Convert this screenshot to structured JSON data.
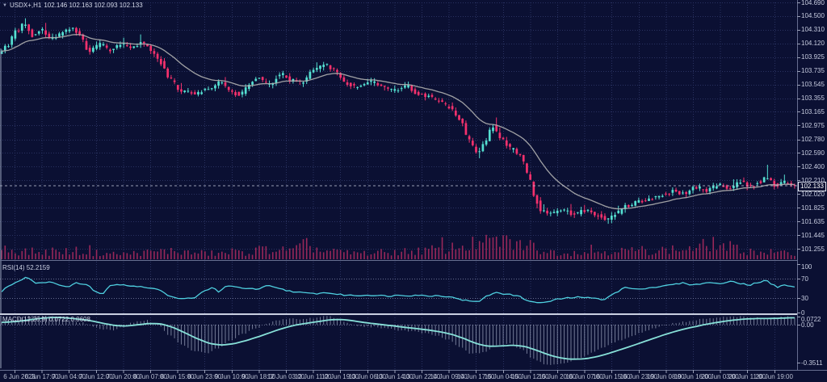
{
  "window": {
    "title_symbol": "USDX+,H1",
    "title_ohlc": "102.146 102.163 102.093 102.133"
  },
  "icons": {
    "dropdown": "▼"
  },
  "panels": {
    "rsi": {
      "label": "RSI(14) 52.2159"
    },
    "macd": {
      "label": "MACD(12,26,9) 0.0722 0.0608"
    }
  },
  "axes": {
    "price": {
      "labels": [
        "104.690",
        "104.500",
        "104.310",
        "104.120",
        "103.925",
        "103.735",
        "103.545",
        "103.355",
        "103.165",
        "102.975",
        "102.780",
        "102.590",
        "102.400",
        "102.210",
        "102.020",
        "101.825",
        "101.635",
        "101.445",
        "101.255"
      ],
      "current": "102.133"
    },
    "rsi": {
      "labels": [
        "100",
        "70",
        "30",
        "0"
      ]
    },
    "macd": {
      "labels": [
        "0.0722",
        "0.00",
        "-0.3511"
      ]
    },
    "time": {
      "labels": [
        "6 Jun 2023",
        "6 Jun 17:00",
        "7 Jun 04:00",
        "7 Jun 12:00",
        "7 Jun 20:00",
        "8 Jun 07:00",
        "8 Jun 15:00",
        "8 Jun 23:00",
        "9 Jun 10:00",
        "9 Jun 18:00",
        "12 Jun 03:00",
        "12 Jun 11:00",
        "12 Jun 19:00",
        "13 Jun 06:00",
        "13 Jun 14:00",
        "13 Jun 22:00",
        "14 Jun 09:00",
        "14 Jun 17:00",
        "15 Jun 04:00",
        "15 Jun 12:00",
        "15 Jun 20:00",
        "16 Jun 07:00",
        "16 Jun 15:00",
        "16 Jun 23:00",
        "19 Jun 08:00",
        "19 Jun 16:00",
        "20 Jun 03:00",
        "20 Jun 11:00",
        "20 Jun 19:00"
      ]
    }
  },
  "colors": {
    "background": "#0b1033",
    "grid": "#2a3261",
    "candle_up": "#55e0d2",
    "candle_down": "#f5316d",
    "ma_line": "#aeaeae",
    "volume": "#a0295c",
    "rsi_line": "#4fd0e0",
    "macd_signal": "#87e0d8",
    "macd_histogram": "#b9c2d9",
    "axis_text": "#c7cce0",
    "divider": "#676e90",
    "divider_bright": "#c9cfe0",
    "price_line": "#c6cbde"
  },
  "chart_data": {
    "type": "candlestick",
    "symbol": "USDX+",
    "timeframe": "H1",
    "title": "USDX+,H1 102.146 102.163 102.093 102.133",
    "legend_position": "none",
    "grid": "dotted",
    "ylim": [
      101.255,
      104.69
    ],
    "num_bars": 235,
    "ohlc_current": {
      "open": 102.146,
      "high": 102.163,
      "low": 102.093,
      "close": 102.133
    },
    "indicators": [
      "MA(20) close",
      "RSI(14)=52.2159",
      "MACD(12,26,9)=0.0722/0.0608"
    ],
    "rsi_levels": [
      70,
      30
    ],
    "macd_scale_marks": [
      0.0722,
      0.0,
      -0.3511
    ],
    "price_path": [
      [
        0,
        103.96
      ],
      [
        10,
        104.08
      ],
      [
        22,
        104.28
      ],
      [
        32,
        104.4
      ],
      [
        42,
        104.22
      ],
      [
        55,
        104.3
      ],
      [
        65,
        104.18
      ],
      [
        78,
        104.26
      ],
      [
        92,
        104.33
      ],
      [
        102,
        104.22
      ],
      [
        112,
        103.99
      ],
      [
        125,
        104.11
      ],
      [
        138,
        104.03
      ],
      [
        152,
        104.12
      ],
      [
        165,
        104.07
      ],
      [
        178,
        104.12
      ],
      [
        190,
        104.02
      ],
      [
        200,
        103.86
      ],
      [
        212,
        103.62
      ],
      [
        228,
        103.44
      ],
      [
        245,
        103.42
      ],
      [
        262,
        103.5
      ],
      [
        275,
        103.57
      ],
      [
        288,
        103.46
      ],
      [
        298,
        103.39
      ],
      [
        312,
        103.56
      ],
      [
        322,
        103.63
      ],
      [
        336,
        103.54
      ],
      [
        350,
        103.7
      ],
      [
        362,
        103.6
      ],
      [
        376,
        103.57
      ],
      [
        390,
        103.73
      ],
      [
        404,
        103.83
      ],
      [
        416,
        103.74
      ],
      [
        430,
        103.55
      ],
      [
        446,
        103.5
      ],
      [
        460,
        103.59
      ],
      [
        475,
        103.52
      ],
      [
        490,
        103.47
      ],
      [
        505,
        103.53
      ],
      [
        518,
        103.42
      ],
      [
        532,
        103.38
      ],
      [
        546,
        103.3
      ],
      [
        560,
        103.22
      ],
      [
        572,
        103.06
      ],
      [
        582,
        102.78
      ],
      [
        592,
        102.59
      ],
      [
        602,
        102.72
      ],
      [
        612,
        102.97
      ],
      [
        622,
        102.8
      ],
      [
        634,
        102.66
      ],
      [
        646,
        102.56
      ],
      [
        656,
        102.3
      ],
      [
        664,
        101.96
      ],
      [
        672,
        101.8
      ],
      [
        684,
        101.74
      ],
      [
        698,
        101.79
      ],
      [
        712,
        101.74
      ],
      [
        726,
        101.79
      ],
      [
        740,
        101.72
      ],
      [
        754,
        101.66
      ],
      [
        766,
        101.76
      ],
      [
        780,
        101.86
      ],
      [
        794,
        101.91
      ],
      [
        808,
        101.96
      ],
      [
        822,
        102.01
      ],
      [
        836,
        102.06
      ],
      [
        850,
        102.02
      ],
      [
        864,
        102.11
      ],
      [
        878,
        102.07
      ],
      [
        892,
        102.15
      ],
      [
        906,
        102.09
      ],
      [
        918,
        102.2
      ],
      [
        930,
        102.12
      ],
      [
        942,
        102.18
      ],
      [
        952,
        102.26
      ],
      [
        962,
        102.14
      ],
      [
        974,
        102.19
      ],
      [
        985,
        102.133
      ]
    ],
    "wick_spikes": [
      {
        "x": 32,
        "up": 0.06
      },
      {
        "x": 592,
        "down": 0.08
      },
      {
        "x": 666,
        "down": 0.05
      },
      {
        "x": 755,
        "down": 0.06
      },
      {
        "x": 950,
        "up": 0.17
      }
    ],
    "volume_envelope": [
      [
        0,
        20
      ],
      [
        30,
        15
      ],
      [
        60,
        13
      ],
      [
        90,
        16
      ],
      [
        120,
        12
      ],
      [
        150,
        10
      ],
      [
        180,
        13
      ],
      [
        210,
        16
      ],
      [
        240,
        12
      ],
      [
        270,
        11
      ],
      [
        300,
        13
      ],
      [
        330,
        19
      ],
      [
        360,
        16
      ],
      [
        380,
        27
      ],
      [
        400,
        15
      ],
      [
        430,
        12
      ],
      [
        460,
        12
      ],
      [
        490,
        14
      ],
      [
        520,
        16
      ],
      [
        550,
        20
      ],
      [
        575,
        26
      ],
      [
        595,
        30
      ],
      [
        615,
        34
      ],
      [
        635,
        30
      ],
      [
        655,
        26
      ],
      [
        680,
        14
      ],
      [
        710,
        13
      ],
      [
        740,
        15
      ],
      [
        770,
        16
      ],
      [
        800,
        17
      ],
      [
        830,
        18
      ],
      [
        860,
        20
      ],
      [
        880,
        30
      ],
      [
        900,
        24
      ],
      [
        920,
        16
      ],
      [
        945,
        14
      ],
      [
        985,
        10
      ]
    ],
    "rsi_series": [
      [
        0,
        42
      ],
      [
        12,
        56
      ],
      [
        24,
        66
      ],
      [
        33,
        73
      ],
      [
        45,
        61
      ],
      [
        60,
        63
      ],
      [
        72,
        58
      ],
      [
        84,
        53
      ],
      [
        95,
        61
      ],
      [
        108,
        57
      ],
      [
        118,
        44
      ],
      [
        127,
        39
      ],
      [
        136,
        56
      ],
      [
        150,
        58
      ],
      [
        163,
        55
      ],
      [
        176,
        53
      ],
      [
        188,
        50
      ],
      [
        198,
        46
      ],
      [
        212,
        33
      ],
      [
        226,
        28
      ],
      [
        240,
        31
      ],
      [
        255,
        45
      ],
      [
        264,
        52
      ],
      [
        271,
        42
      ],
      [
        280,
        55
      ],
      [
        294,
        52
      ],
      [
        306,
        50
      ],
      [
        318,
        48
      ],
      [
        332,
        55
      ],
      [
        345,
        50
      ],
      [
        357,
        45
      ],
      [
        368,
        42
      ],
      [
        380,
        40
      ],
      [
        392,
        39
      ],
      [
        404,
        41
      ],
      [
        416,
        38
      ],
      [
        428,
        36
      ],
      [
        442,
        35
      ],
      [
        456,
        36
      ],
      [
        470,
        35
      ],
      [
        482,
        34
      ],
      [
        494,
        36
      ],
      [
        506,
        35
      ],
      [
        518,
        36
      ],
      [
        530,
        34
      ],
      [
        542,
        35
      ],
      [
        554,
        33
      ],
      [
        564,
        30
      ],
      [
        576,
        25
      ],
      [
        590,
        22
      ],
      [
        604,
        34
      ],
      [
        614,
        42
      ],
      [
        626,
        38
      ],
      [
        640,
        35
      ],
      [
        652,
        26
      ],
      [
        664,
        20
      ],
      [
        678,
        22
      ],
      [
        692,
        28
      ],
      [
        704,
        30
      ],
      [
        718,
        32
      ],
      [
        732,
        30
      ],
      [
        746,
        27
      ],
      [
        762,
        40
      ],
      [
        774,
        52
      ],
      [
        786,
        48
      ],
      [
        798,
        50
      ],
      [
        810,
        52
      ],
      [
        822,
        55
      ],
      [
        834,
        58
      ],
      [
        846,
        61
      ],
      [
        858,
        57
      ],
      [
        870,
        60
      ],
      [
        882,
        62
      ],
      [
        894,
        59
      ],
      [
        906,
        65
      ],
      [
        918,
        60
      ],
      [
        928,
        57
      ],
      [
        938,
        62
      ],
      [
        948,
        66
      ],
      [
        956,
        59
      ],
      [
        963,
        51
      ],
      [
        970,
        58
      ],
      [
        977,
        54
      ],
      [
        985,
        52.2
      ]
    ],
    "macd_series": [
      [
        0,
        0.02
      ],
      [
        20,
        0.05
      ],
      [
        40,
        0.09
      ],
      [
        60,
        0.08
      ],
      [
        80,
        0.05
      ],
      [
        100,
        0.02
      ],
      [
        112,
        -0.01
      ],
      [
        125,
        -0.04
      ],
      [
        138,
        -0.05
      ],
      [
        152,
        -0.02
      ],
      [
        165,
        0.02
      ],
      [
        180,
        0.04
      ],
      [
        195,
        0.0
      ],
      [
        210,
        -0.1
      ],
      [
        225,
        -0.18
      ],
      [
        240,
        -0.24
      ],
      [
        255,
        -0.26
      ],
      [
        270,
        -0.22
      ],
      [
        285,
        -0.15
      ],
      [
        300,
        -0.09
      ],
      [
        315,
        -0.04
      ],
      [
        330,
        0.01
      ],
      [
        345,
        0.04
      ],
      [
        360,
        0.06
      ],
      [
        375,
        0.05
      ],
      [
        390,
        0.06
      ],
      [
        405,
        0.08
      ],
      [
        420,
        0.05
      ],
      [
        435,
        0.0
      ],
      [
        450,
        -0.02
      ],
      [
        465,
        -0.02
      ],
      [
        480,
        -0.04
      ],
      [
        495,
        -0.05
      ],
      [
        510,
        -0.06
      ],
      [
        525,
        -0.08
      ],
      [
        540,
        -0.1
      ],
      [
        555,
        -0.14
      ],
      [
        570,
        -0.21
      ],
      [
        585,
        -0.27
      ],
      [
        600,
        -0.25
      ],
      [
        615,
        -0.19
      ],
      [
        630,
        -0.17
      ],
      [
        645,
        -0.22
      ],
      [
        660,
        -0.31
      ],
      [
        675,
        -0.36
      ],
      [
        690,
        -0.37
      ],
      [
        705,
        -0.34
      ],
      [
        720,
        -0.3
      ],
      [
        735,
        -0.25
      ],
      [
        750,
        -0.2
      ],
      [
        765,
        -0.15
      ],
      [
        780,
        -0.11
      ],
      [
        795,
        -0.07
      ],
      [
        810,
        -0.03
      ],
      [
        825,
        0.0
      ],
      [
        840,
        0.02
      ],
      [
        855,
        0.03
      ],
      [
        870,
        0.05
      ],
      [
        885,
        0.06
      ],
      [
        900,
        0.07
      ],
      [
        915,
        0.072
      ],
      [
        930,
        0.065
      ],
      [
        945,
        0.06
      ],
      [
        960,
        0.065
      ],
      [
        975,
        0.07
      ],
      [
        985,
        0.072
      ]
    ]
  }
}
